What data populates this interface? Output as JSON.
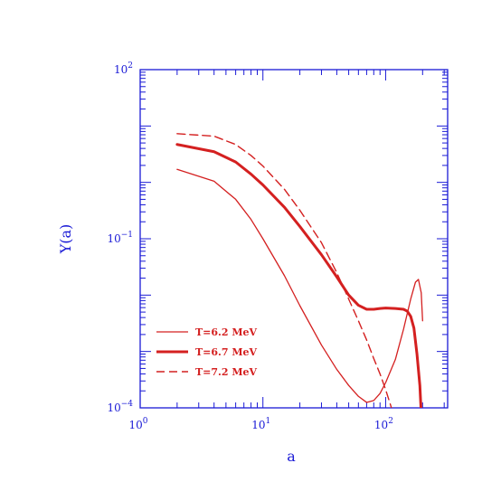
{
  "chart_data": {
    "type": "line",
    "xlabel": "a",
    "ylabel": "Y(a)",
    "xscale": "log",
    "yscale": "log",
    "xlim": [
      1,
      320
    ],
    "ylim": [
      0.0001,
      100
    ],
    "grid": false,
    "legend_position": "bottom-left",
    "x_ticks": [
      {
        "value": 1,
        "base": "10",
        "exp": "0"
      },
      {
        "value": 10,
        "base": "10",
        "exp": "1"
      },
      {
        "value": 100,
        "base": "10",
        "exp": "2"
      }
    ],
    "y_ticks": [
      {
        "value": 0.0001,
        "base": "10",
        "exp": "−4"
      },
      {
        "value": 0.1,
        "base": "10",
        "exp": "−1"
      },
      {
        "value": 100,
        "base": "10",
        "exp": "2"
      }
    ],
    "series": [
      {
        "name": "T=6.2 MeV",
        "style": "thin-solid",
        "points": [
          [
            2,
            1.7
          ],
          [
            4,
            1.05
          ],
          [
            6,
            0.5
          ],
          [
            8,
            0.22
          ],
          [
            10,
            0.1
          ],
          [
            15,
            0.022
          ],
          [
            20,
            0.0065
          ],
          [
            30,
            0.0013
          ],
          [
            40,
            0.00048
          ],
          [
            50,
            0.00025
          ],
          [
            60,
            0.00016
          ],
          [
            70,
            0.000125
          ],
          [
            80,
            0.000135
          ],
          [
            90,
            0.00018
          ],
          [
            100,
            0.00028
          ],
          [
            120,
            0.00072
          ],
          [
            140,
            0.0025
          ],
          [
            160,
            0.0085
          ],
          [
            175,
            0.017
          ],
          [
            185,
            0.019
          ],
          [
            195,
            0.011
          ],
          [
            200,
            0.0035
          ]
        ]
      },
      {
        "name": "T=6.7 MeV",
        "style": "thick-solid",
        "points": [
          [
            2,
            4.7
          ],
          [
            4,
            3.5
          ],
          [
            6,
            2.3
          ],
          [
            8,
            1.4
          ],
          [
            10,
            0.9
          ],
          [
            15,
            0.36
          ],
          [
            20,
            0.165
          ],
          [
            30,
            0.052
          ],
          [
            40,
            0.021
          ],
          [
            50,
            0.01
          ],
          [
            60,
            0.0066
          ],
          [
            70,
            0.0056
          ],
          [
            80,
            0.0056
          ],
          [
            90,
            0.0058
          ],
          [
            100,
            0.0059
          ],
          [
            120,
            0.0058
          ],
          [
            140,
            0.0056
          ],
          [
            150,
            0.0052
          ],
          [
            160,
            0.0042
          ],
          [
            170,
            0.0026
          ],
          [
            180,
            0.0009
          ],
          [
            190,
            0.00025
          ],
          [
            195,
            8e-05
          ]
        ]
      },
      {
        "name": "T=7.2 MeV",
        "style": "dashed",
        "points": [
          [
            2,
            7.3
          ],
          [
            4,
            6.6
          ],
          [
            6,
            4.7
          ],
          [
            8,
            3.0
          ],
          [
            10,
            1.95
          ],
          [
            15,
            0.75
          ],
          [
            20,
            0.32
          ],
          [
            30,
            0.085
          ],
          [
            40,
            0.025
          ],
          [
            50,
            0.0085
          ],
          [
            60,
            0.0035
          ],
          [
            70,
            0.0016
          ],
          [
            80,
            0.00075
          ],
          [
            90,
            0.0004
          ],
          [
            100,
            0.00021
          ],
          [
            110,
            0.00011
          ],
          [
            115,
            8e-05
          ]
        ]
      }
    ]
  }
}
